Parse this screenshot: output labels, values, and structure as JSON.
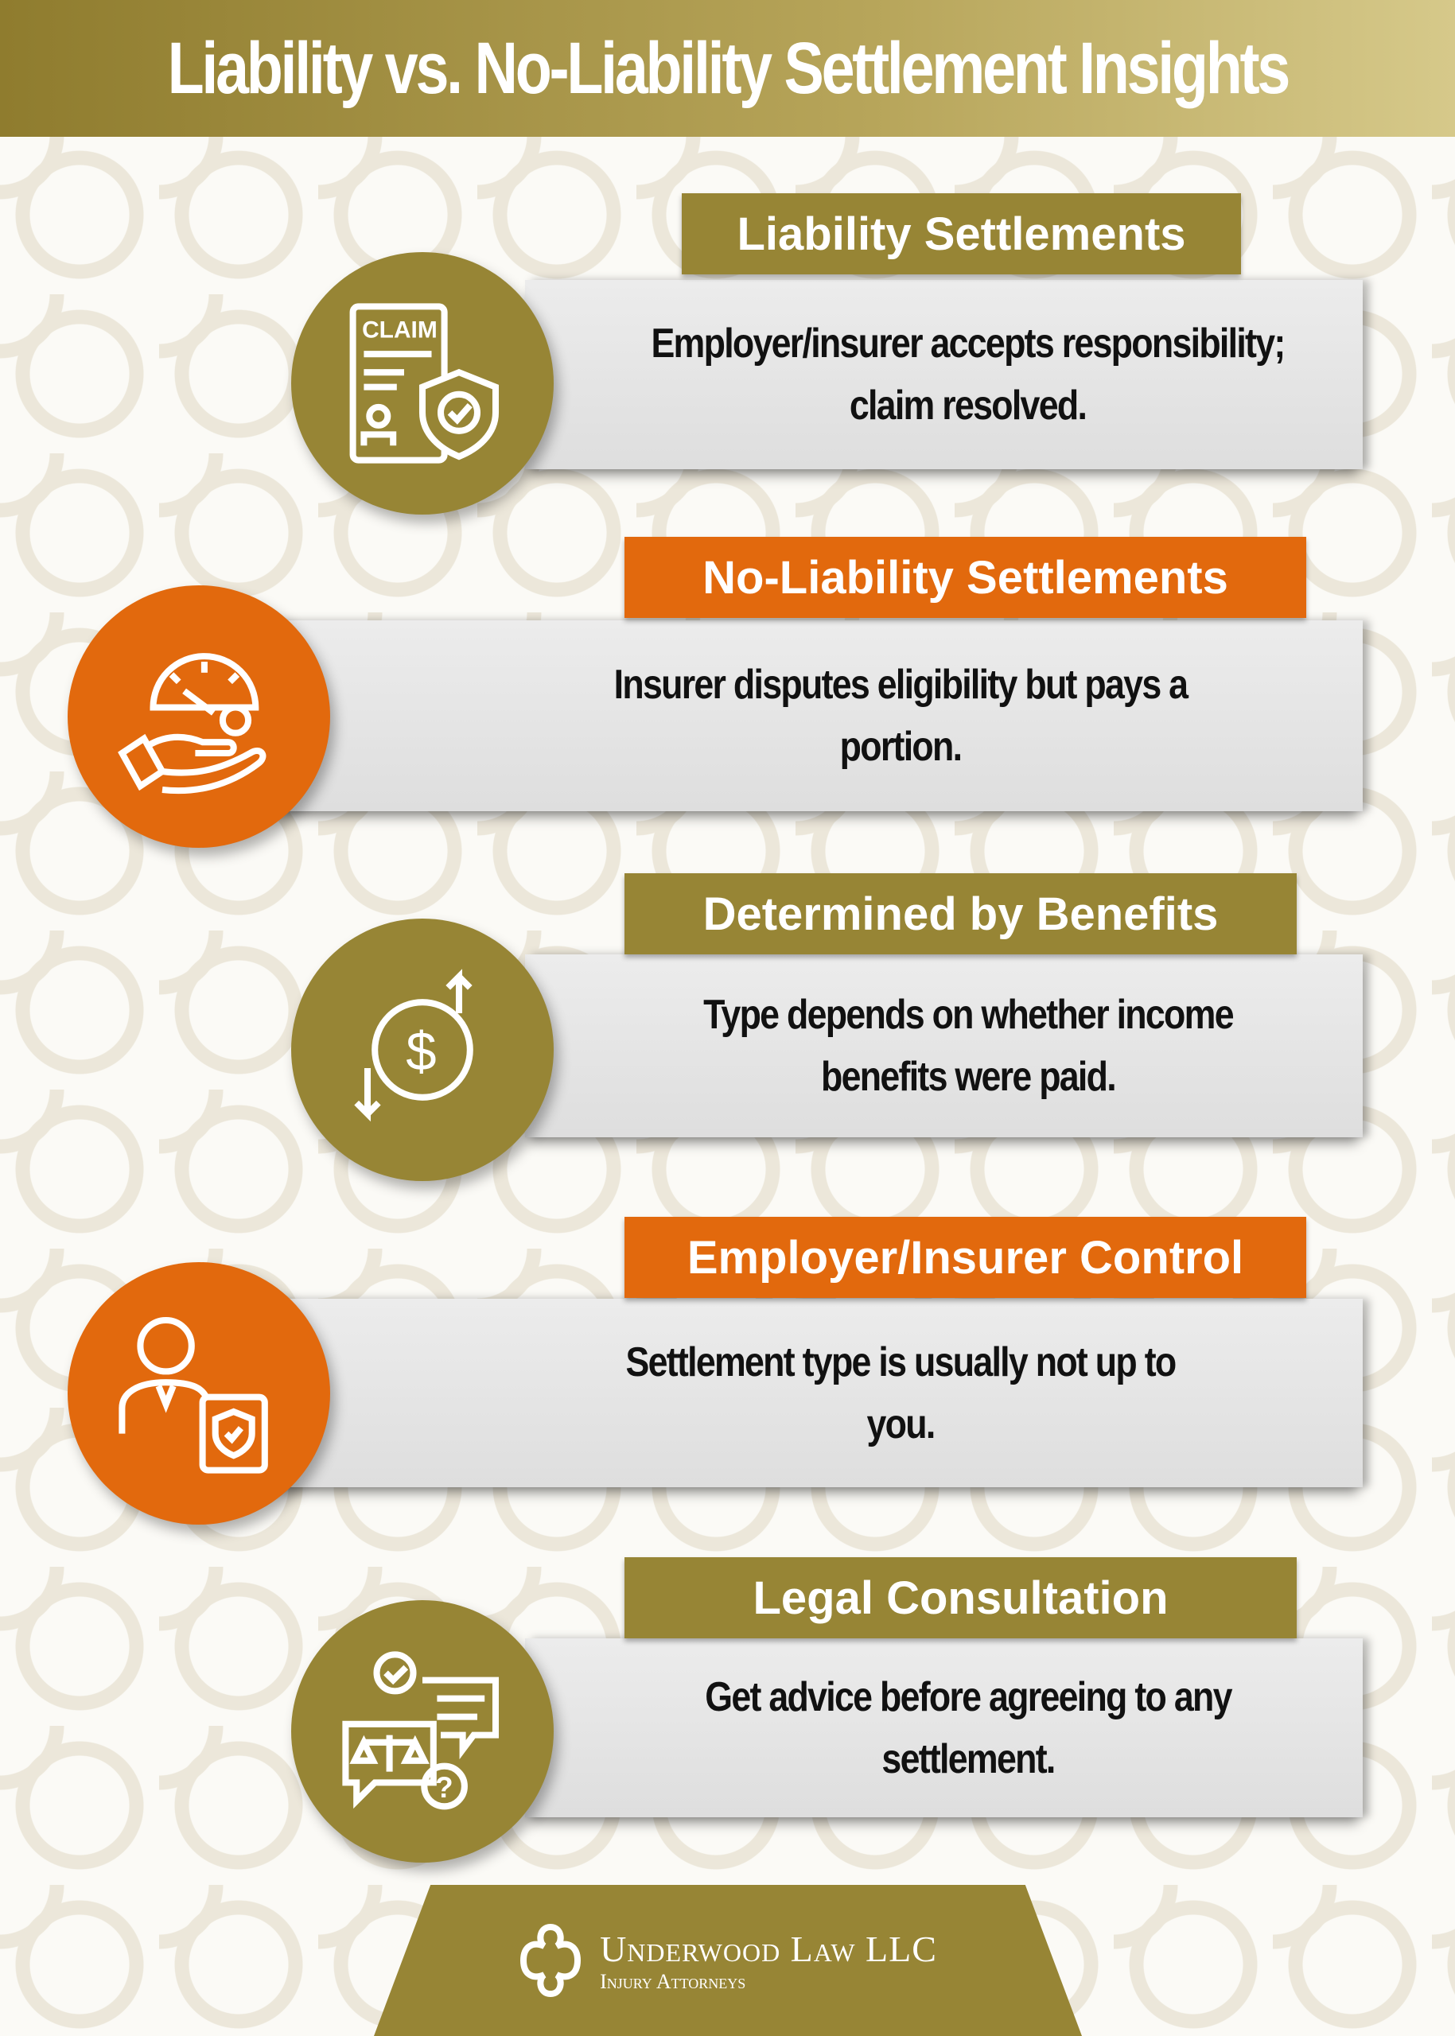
{
  "title": "Liability vs. No-Liability Settlement Insights",
  "colors": {
    "gold": "#978535",
    "orange": "#e2690d",
    "band": "#e4e4e4"
  },
  "items": [
    {
      "label": "Liability Settlements",
      "text": "Employer/insurer accepts responsibility; claim resolved.",
      "icon": "claim-document-shield-icon",
      "color": "gold",
      "icon_text": "CLAIM"
    },
    {
      "label": "No-Liability Settlements",
      "text": "Insurer disputes eligibility but pays a portion.",
      "icon": "hand-gauge-dollar-icon",
      "color": "orange"
    },
    {
      "label": "Determined by Benefits",
      "text": "Type depends on whether income benefits were paid.",
      "icon": "dollar-arrows-icon",
      "color": "gold"
    },
    {
      "label": "Employer/Insurer Control",
      "text": "Settlement type is usually not up to you.",
      "icon": "person-shield-document-icon",
      "color": "orange"
    },
    {
      "label": "Legal Consultation",
      "text": "Get advice before agreeing to any settlement.",
      "icon": "chat-scales-question-icon",
      "color": "gold"
    }
  ],
  "footer": {
    "name": "Underwood Law LLC",
    "subtitle": "Injury Attorneys"
  }
}
